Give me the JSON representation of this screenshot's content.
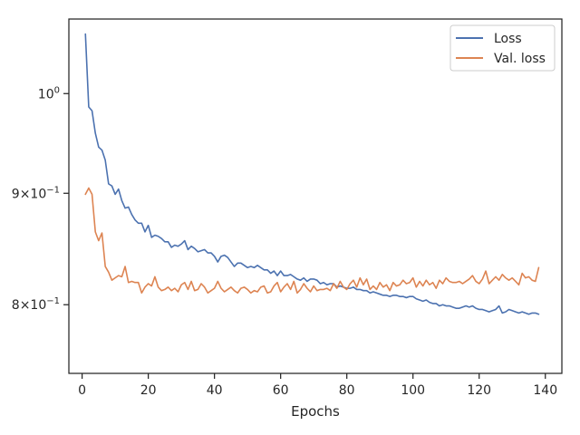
{
  "chart_data": {
    "type": "line",
    "title": "",
    "xlabel": "Epochs",
    "ylabel": "",
    "xlim": [
      -4.0,
      145.0
    ],
    "ylim": [
      0.744,
      1.082
    ],
    "yscale": "log",
    "grid": false,
    "legend_position": "top-right",
    "x_ticks": [
      0,
      20,
      40,
      60,
      80,
      100,
      120,
      140
    ],
    "x_tick_labels": [
      "0",
      "20",
      "40",
      "60",
      "80",
      "100",
      "120",
      "140"
    ],
    "y_ticks": [
      {
        "value": 1.0,
        "base": "10",
        "exp": "0",
        "mantissa": ""
      },
      {
        "value": 0.9,
        "base": "10",
        "exp": "−1",
        "mantissa": "9×"
      },
      {
        "value": 0.8,
        "base": "10",
        "exp": "−1",
        "mantissa": "8×"
      }
    ],
    "x": [
      1,
      2,
      3,
      4,
      5,
      6,
      7,
      8,
      9,
      10,
      11,
      12,
      13,
      14,
      15,
      16,
      17,
      18,
      19,
      20,
      21,
      22,
      23,
      24,
      25,
      26,
      27,
      28,
      29,
      30,
      31,
      32,
      33,
      34,
      35,
      36,
      37,
      38,
      39,
      40,
      41,
      42,
      43,
      44,
      45,
      46,
      47,
      48,
      49,
      50,
      51,
      52,
      53,
      54,
      55,
      56,
      57,
      58,
      59,
      60,
      61,
      62,
      63,
      64,
      65,
      66,
      67,
      68,
      69,
      70,
      71,
      72,
      73,
      74,
      75,
      76,
      77,
      78,
      79,
      80,
      81,
      82,
      83,
      84,
      85,
      86,
      87,
      88,
      89,
      90,
      91,
      92,
      93,
      94,
      95,
      96,
      97,
      98,
      99,
      100,
      101,
      102,
      103,
      104,
      105,
      106,
      107,
      108,
      109,
      110,
      111,
      112,
      113,
      114,
      115,
      116,
      117,
      118,
      119,
      120,
      121,
      122,
      123,
      124,
      125,
      126,
      127,
      128,
      129,
      130,
      131,
      132,
      133,
      134,
      135,
      136,
      137,
      138
    ],
    "series": [
      {
        "name": "Loss",
        "color": "#4c72b0",
        "values": [
          1.065,
          0.986,
          0.982,
          0.959,
          0.945,
          0.942,
          0.932,
          0.909,
          0.907,
          0.899,
          0.904,
          0.893,
          0.886,
          0.887,
          0.88,
          0.875,
          0.872,
          0.872,
          0.864,
          0.87,
          0.859,
          0.861,
          0.86,
          0.858,
          0.855,
          0.855,
          0.85,
          0.852,
          0.851,
          0.853,
          0.856,
          0.848,
          0.851,
          0.849,
          0.846,
          0.847,
          0.848,
          0.845,
          0.845,
          0.842,
          0.837,
          0.842,
          0.843,
          0.841,
          0.837,
          0.833,
          0.836,
          0.836,
          0.834,
          0.832,
          0.833,
          0.832,
          0.834,
          0.832,
          0.83,
          0.83,
          0.827,
          0.829,
          0.825,
          0.829,
          0.825,
          0.825,
          0.826,
          0.824,
          0.822,
          0.821,
          0.823,
          0.82,
          0.822,
          0.822,
          0.821,
          0.818,
          0.819,
          0.817,
          0.818,
          0.818,
          0.815,
          0.816,
          0.815,
          0.814,
          0.814,
          0.815,
          0.813,
          0.813,
          0.812,
          0.812,
          0.81,
          0.811,
          0.81,
          0.809,
          0.808,
          0.808,
          0.807,
          0.808,
          0.808,
          0.807,
          0.807,
          0.806,
          0.807,
          0.807,
          0.805,
          0.804,
          0.803,
          0.804,
          0.802,
          0.801,
          0.801,
          0.799,
          0.8,
          0.799,
          0.799,
          0.798,
          0.797,
          0.797,
          0.798,
          0.799,
          0.798,
          0.799,
          0.797,
          0.796,
          0.796,
          0.795,
          0.794,
          0.795,
          0.796,
          0.799,
          0.793,
          0.794,
          0.796,
          0.795,
          0.794,
          0.793,
          0.794,
          0.793,
          0.792,
          0.793,
          0.793,
          0.792
        ]
      },
      {
        "name": "Val. loss",
        "color": "#dd8452",
        "values": [
          0.899,
          0.905,
          0.899,
          0.864,
          0.856,
          0.863,
          0.833,
          0.828,
          0.821,
          0.823,
          0.825,
          0.824,
          0.833,
          0.819,
          0.82,
          0.819,
          0.819,
          0.81,
          0.815,
          0.818,
          0.816,
          0.824,
          0.815,
          0.812,
          0.813,
          0.815,
          0.812,
          0.814,
          0.811,
          0.817,
          0.819,
          0.813,
          0.82,
          0.812,
          0.813,
          0.818,
          0.815,
          0.81,
          0.812,
          0.814,
          0.82,
          0.814,
          0.811,
          0.813,
          0.815,
          0.812,
          0.81,
          0.814,
          0.815,
          0.813,
          0.81,
          0.812,
          0.811,
          0.815,
          0.816,
          0.81,
          0.811,
          0.816,
          0.819,
          0.811,
          0.815,
          0.818,
          0.813,
          0.82,
          0.81,
          0.813,
          0.818,
          0.814,
          0.811,
          0.816,
          0.812,
          0.813,
          0.813,
          0.814,
          0.812,
          0.818,
          0.814,
          0.82,
          0.815,
          0.813,
          0.818,
          0.821,
          0.815,
          0.823,
          0.817,
          0.822,
          0.813,
          0.816,
          0.813,
          0.819,
          0.815,
          0.817,
          0.812,
          0.819,
          0.816,
          0.817,
          0.821,
          0.818,
          0.819,
          0.823,
          0.815,
          0.82,
          0.816,
          0.821,
          0.817,
          0.819,
          0.814,
          0.821,
          0.818,
          0.823,
          0.82,
          0.819,
          0.819,
          0.82,
          0.818,
          0.82,
          0.822,
          0.825,
          0.82,
          0.818,
          0.822,
          0.829,
          0.818,
          0.821,
          0.824,
          0.821,
          0.826,
          0.823,
          0.821,
          0.823,
          0.82,
          0.817,
          0.827,
          0.823,
          0.824,
          0.821,
          0.82,
          0.832
        ]
      }
    ]
  }
}
